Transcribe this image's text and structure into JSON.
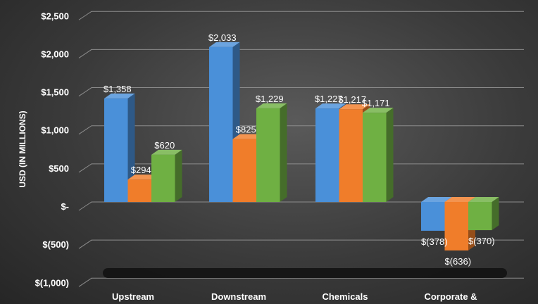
{
  "chart_data": {
    "type": "bar",
    "title": "",
    "ylabel": "USD (IN MILLIONS)",
    "xlabel": "",
    "categories": [
      "Upstream",
      "Downstream",
      "Chemicals",
      "Corporate &"
    ],
    "ylim": [
      -1000,
      2500
    ],
    "yticks": [
      -1000,
      -500,
      0,
      500,
      1000,
      1500,
      2000,
      2500
    ],
    "ytick_labels": [
      "$(1,000)",
      "$(500)",
      "$-",
      "$500",
      "$1,000",
      "$1,500",
      "$2,000",
      "$2,500"
    ],
    "grid": true,
    "legend": "none",
    "series": [
      {
        "color": "#4a90d9",
        "values": [
          1358,
          2033,
          1227,
          -378
        ],
        "labels": [
          "$1,358",
          "$2,033",
          "$1,227",
          "$(378)"
        ]
      },
      {
        "color": "#f07d2a",
        "values": [
          294,
          825,
          1217,
          -636
        ],
        "labels": [
          "$294",
          "$825",
          "$1,217",
          "$(636)"
        ]
      },
      {
        "color": "#6fb043",
        "values": [
          620,
          1229,
          1171,
          -370
        ],
        "labels": [
          "$620",
          "$1,229",
          "$1,171",
          "$(370)"
        ]
      }
    ]
  }
}
